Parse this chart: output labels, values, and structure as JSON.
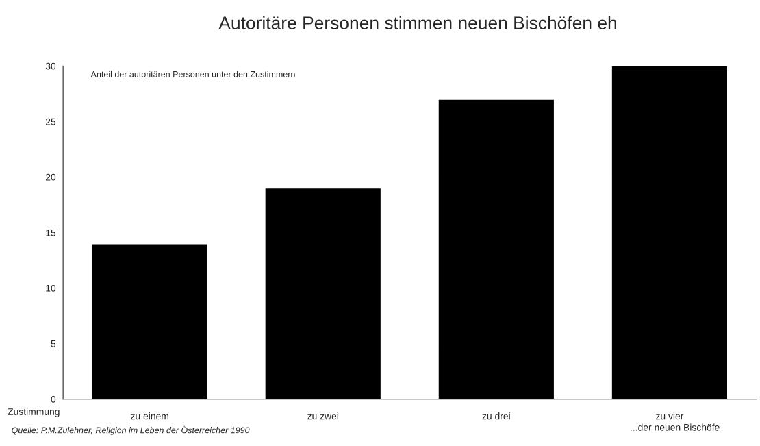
{
  "chart_data": {
    "type": "bar",
    "title": "Autoritäre Personen stimmen neuen Bischöfen eh",
    "xlabel": "Zustimmung",
    "categories": [
      "zu einem",
      "zu zwei",
      "zu drei",
      "zu vier"
    ],
    "values": [
      14,
      19,
      27,
      30
    ],
    "color": "#000000",
    "ylim": [
      0,
      30
    ],
    "yticks": [
      0,
      5,
      10,
      15,
      20,
      25,
      30
    ],
    "grid": false,
    "annotations": [
      "Anteil der autoritären Personen unter den Zustimmern",
      "...der neuen Bischöfe",
      "Quelle: P.M.Zulehner, Religion im Leben der Österreicher 1990"
    ]
  }
}
